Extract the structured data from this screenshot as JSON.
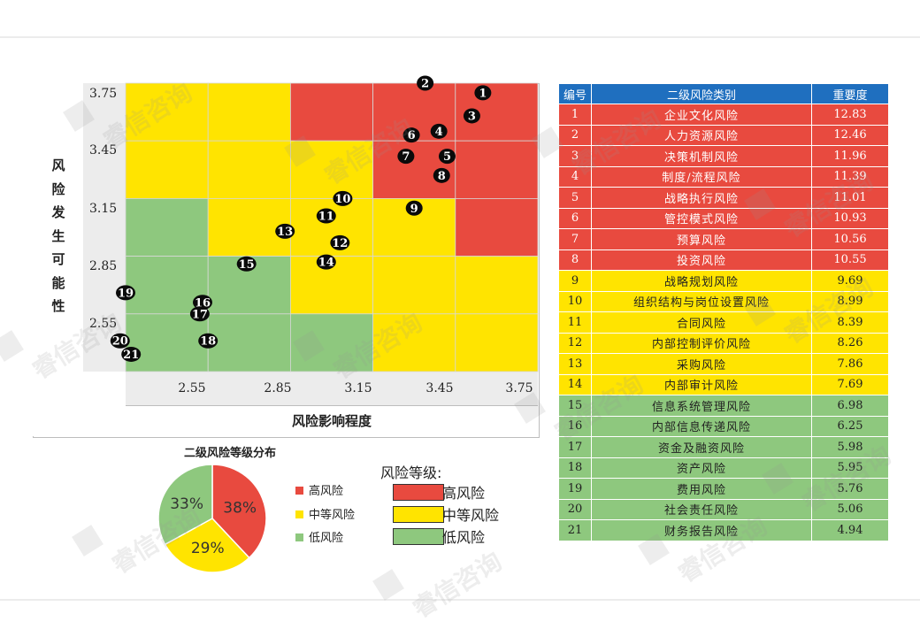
{
  "watermark": "睿信咨询",
  "matrix": {
    "y_title_chars": [
      "风",
      "险",
      "发",
      "生",
      "可",
      "能",
      "性"
    ],
    "x_title": "风险影响程度",
    "colors": {
      "high": "#e84a3f",
      "mid": "#ffe400",
      "low": "#8ec87e"
    }
  },
  "chart_data": [
    {
      "type": "scatter",
      "title": "",
      "xlabel": "风险影响程度",
      "ylabel": "风险发生可能性",
      "x_ticks": [
        "2.55",
        "2.85",
        "3.15",
        "3.45",
        "3.75"
      ],
      "y_ticks": [
        "3.75",
        "3.45",
        "3.15",
        "2.85",
        "2.55"
      ],
      "xlim": [
        2.25,
        3.75
      ],
      "ylim": [
        2.25,
        3.75
      ],
      "zones": [
        [
          "mid",
          "mid",
          "high",
          "high",
          "high"
        ],
        [
          "mid",
          "mid",
          "mid",
          "high",
          "high"
        ],
        [
          "low",
          "mid",
          "mid",
          "mid",
          "high"
        ],
        [
          "low",
          "low",
          "mid",
          "mid",
          "mid"
        ],
        [
          "low",
          "low",
          "low",
          "mid",
          "mid"
        ]
      ],
      "points": [
        {
          "id": "1",
          "x": 3.55,
          "y": 3.7
        },
        {
          "id": "2",
          "x": 3.34,
          "y": 3.75
        },
        {
          "id": "3",
          "x": 3.51,
          "y": 3.58
        },
        {
          "id": "4",
          "x": 3.39,
          "y": 3.5
        },
        {
          "id": "5",
          "x": 3.42,
          "y": 3.37
        },
        {
          "id": "6",
          "x": 3.29,
          "y": 3.48
        },
        {
          "id": "7",
          "x": 3.27,
          "y": 3.37
        },
        {
          "id": "8",
          "x": 3.4,
          "y": 3.27
        },
        {
          "id": "9",
          "x": 3.3,
          "y": 3.1
        },
        {
          "id": "10",
          "x": 3.04,
          "y": 3.15
        },
        {
          "id": "11",
          "x": 2.98,
          "y": 3.06
        },
        {
          "id": "12",
          "x": 3.03,
          "y": 2.92
        },
        {
          "id": "13",
          "x": 2.83,
          "y": 2.98
        },
        {
          "id": "14",
          "x": 2.98,
          "y": 2.82
        },
        {
          "id": "15",
          "x": 2.69,
          "y": 2.81
        },
        {
          "id": "16",
          "x": 2.53,
          "y": 2.61
        },
        {
          "id": "17",
          "x": 2.52,
          "y": 2.55
        },
        {
          "id": "18",
          "x": 2.55,
          "y": 2.41
        },
        {
          "id": "19",
          "x": 2.25,
          "y": 2.66
        },
        {
          "id": "20",
          "x": 2.23,
          "y": 2.41
        },
        {
          "id": "21",
          "x": 2.27,
          "y": 2.34
        }
      ]
    },
    {
      "type": "pie",
      "title": "二级风险等级分布",
      "slices": [
        {
          "name": "高风险",
          "value": 38,
          "label": "38%",
          "color": "#e84a3f"
        },
        {
          "name": "中等风险",
          "value": 29,
          "label": "29%",
          "color": "#ffe400"
        },
        {
          "name": "低风险",
          "value": 33,
          "label": "33%",
          "color": "#8ec87e"
        }
      ]
    },
    {
      "type": "table",
      "headers": [
        "编号",
        "二级风险类别",
        "重要度"
      ],
      "rows": [
        {
          "no": "1",
          "name": "企业文化风险",
          "score": "12.83",
          "level": "high"
        },
        {
          "no": "2",
          "name": "人力资源风险",
          "score": "12.46",
          "level": "high"
        },
        {
          "no": "3",
          "name": "决策机制风险",
          "score": "11.96",
          "level": "high"
        },
        {
          "no": "4",
          "name": "制度/流程风险",
          "score": "11.39",
          "level": "high"
        },
        {
          "no": "5",
          "name": "战略执行风险",
          "score": "11.01",
          "level": "high"
        },
        {
          "no": "6",
          "name": "管控模式风险",
          "score": "10.93",
          "level": "high"
        },
        {
          "no": "7",
          "name": "预算风险",
          "score": "10.56",
          "level": "high"
        },
        {
          "no": "8",
          "name": "投资风险",
          "score": "10.55",
          "level": "high"
        },
        {
          "no": "9",
          "name": "战略规划风险",
          "score": "9.69",
          "level": "mid"
        },
        {
          "no": "10",
          "name": "组织结构与岗位设置风险",
          "score": "8.99",
          "level": "mid"
        },
        {
          "no": "11",
          "name": "合同风险",
          "score": "8.39",
          "level": "mid"
        },
        {
          "no": "12",
          "name": "内部控制评价风险",
          "score": "8.26",
          "level": "mid"
        },
        {
          "no": "13",
          "name": "采购风险",
          "score": "7.86",
          "level": "mid"
        },
        {
          "no": "14",
          "name": "内部审计风险",
          "score": "7.69",
          "level": "mid"
        },
        {
          "no": "15",
          "name": "信息系统管理风险",
          "score": "6.98",
          "level": "low"
        },
        {
          "no": "16",
          "name": "内部信息传递风险",
          "score": "6.25",
          "level": "low"
        },
        {
          "no": "17",
          "name": "资金及融资风险",
          "score": "5.98",
          "level": "low"
        },
        {
          "no": "18",
          "name": "资产风险",
          "score": "5.95",
          "level": "low"
        },
        {
          "no": "19",
          "name": "费用风险",
          "score": "5.76",
          "level": "low"
        },
        {
          "no": "20",
          "name": "社会责任风险",
          "score": "5.06",
          "level": "low"
        },
        {
          "no": "21",
          "name": "财务报告风险",
          "score": "4.94",
          "level": "low"
        }
      ]
    }
  ],
  "pie_legend": [
    "高风险",
    "中等风险",
    "低风险"
  ],
  "level_legend": {
    "title": "风险等级:",
    "items": [
      {
        "label": "高风险",
        "color": "#e84a3f"
      },
      {
        "label": "中等风险",
        "color": "#ffe400"
      },
      {
        "label": "低风险",
        "color": "#8ec87e"
      }
    ]
  }
}
